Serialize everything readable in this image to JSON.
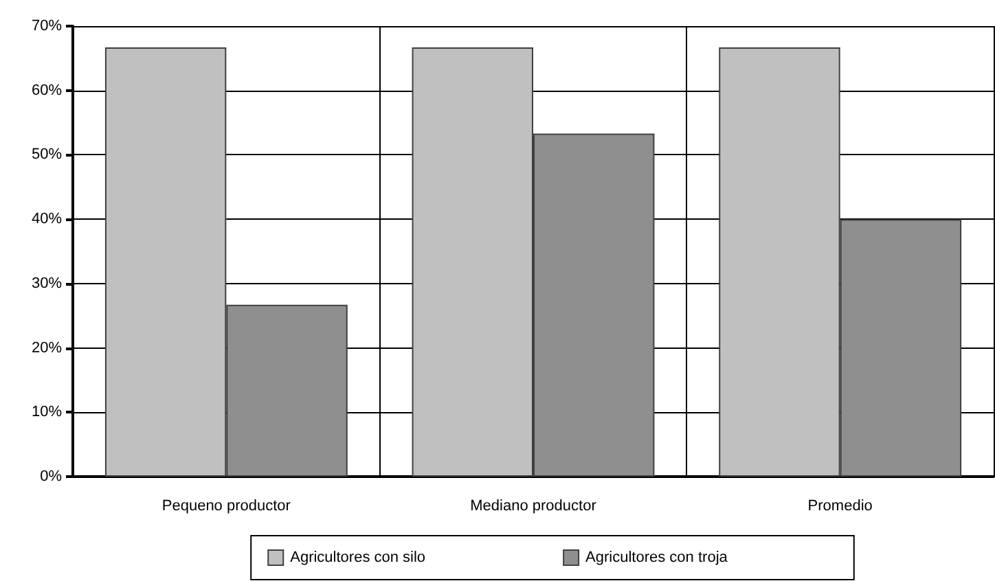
{
  "chart_data": {
    "type": "bar",
    "categories": [
      "Pequeno productor",
      "Mediano productor",
      "Promedio"
    ],
    "series": [
      {
        "name": "Agricultores con silo",
        "color": "#c0c0c0",
        "values": [
          66.7,
          66.7,
          66.7
        ]
      },
      {
        "name": "Agricultores con troja",
        "color": "#8f8f8f",
        "values": [
          26.7,
          53.3,
          40
        ]
      }
    ],
    "ylim": [
      0,
      70
    ],
    "yticks": [
      {
        "value": 0,
        "label": "0%"
      },
      {
        "value": 10,
        "label": "10%"
      },
      {
        "value": 20,
        "label": "20%"
      },
      {
        "value": 30,
        "label": "30%"
      },
      {
        "value": 40,
        "label": "40%"
      },
      {
        "value": 50,
        "label": "50%"
      },
      {
        "value": 60,
        "label": "60%"
      },
      {
        "value": 70,
        "label": "70%"
      }
    ],
    "grid": true,
    "legend": "bottom"
  }
}
